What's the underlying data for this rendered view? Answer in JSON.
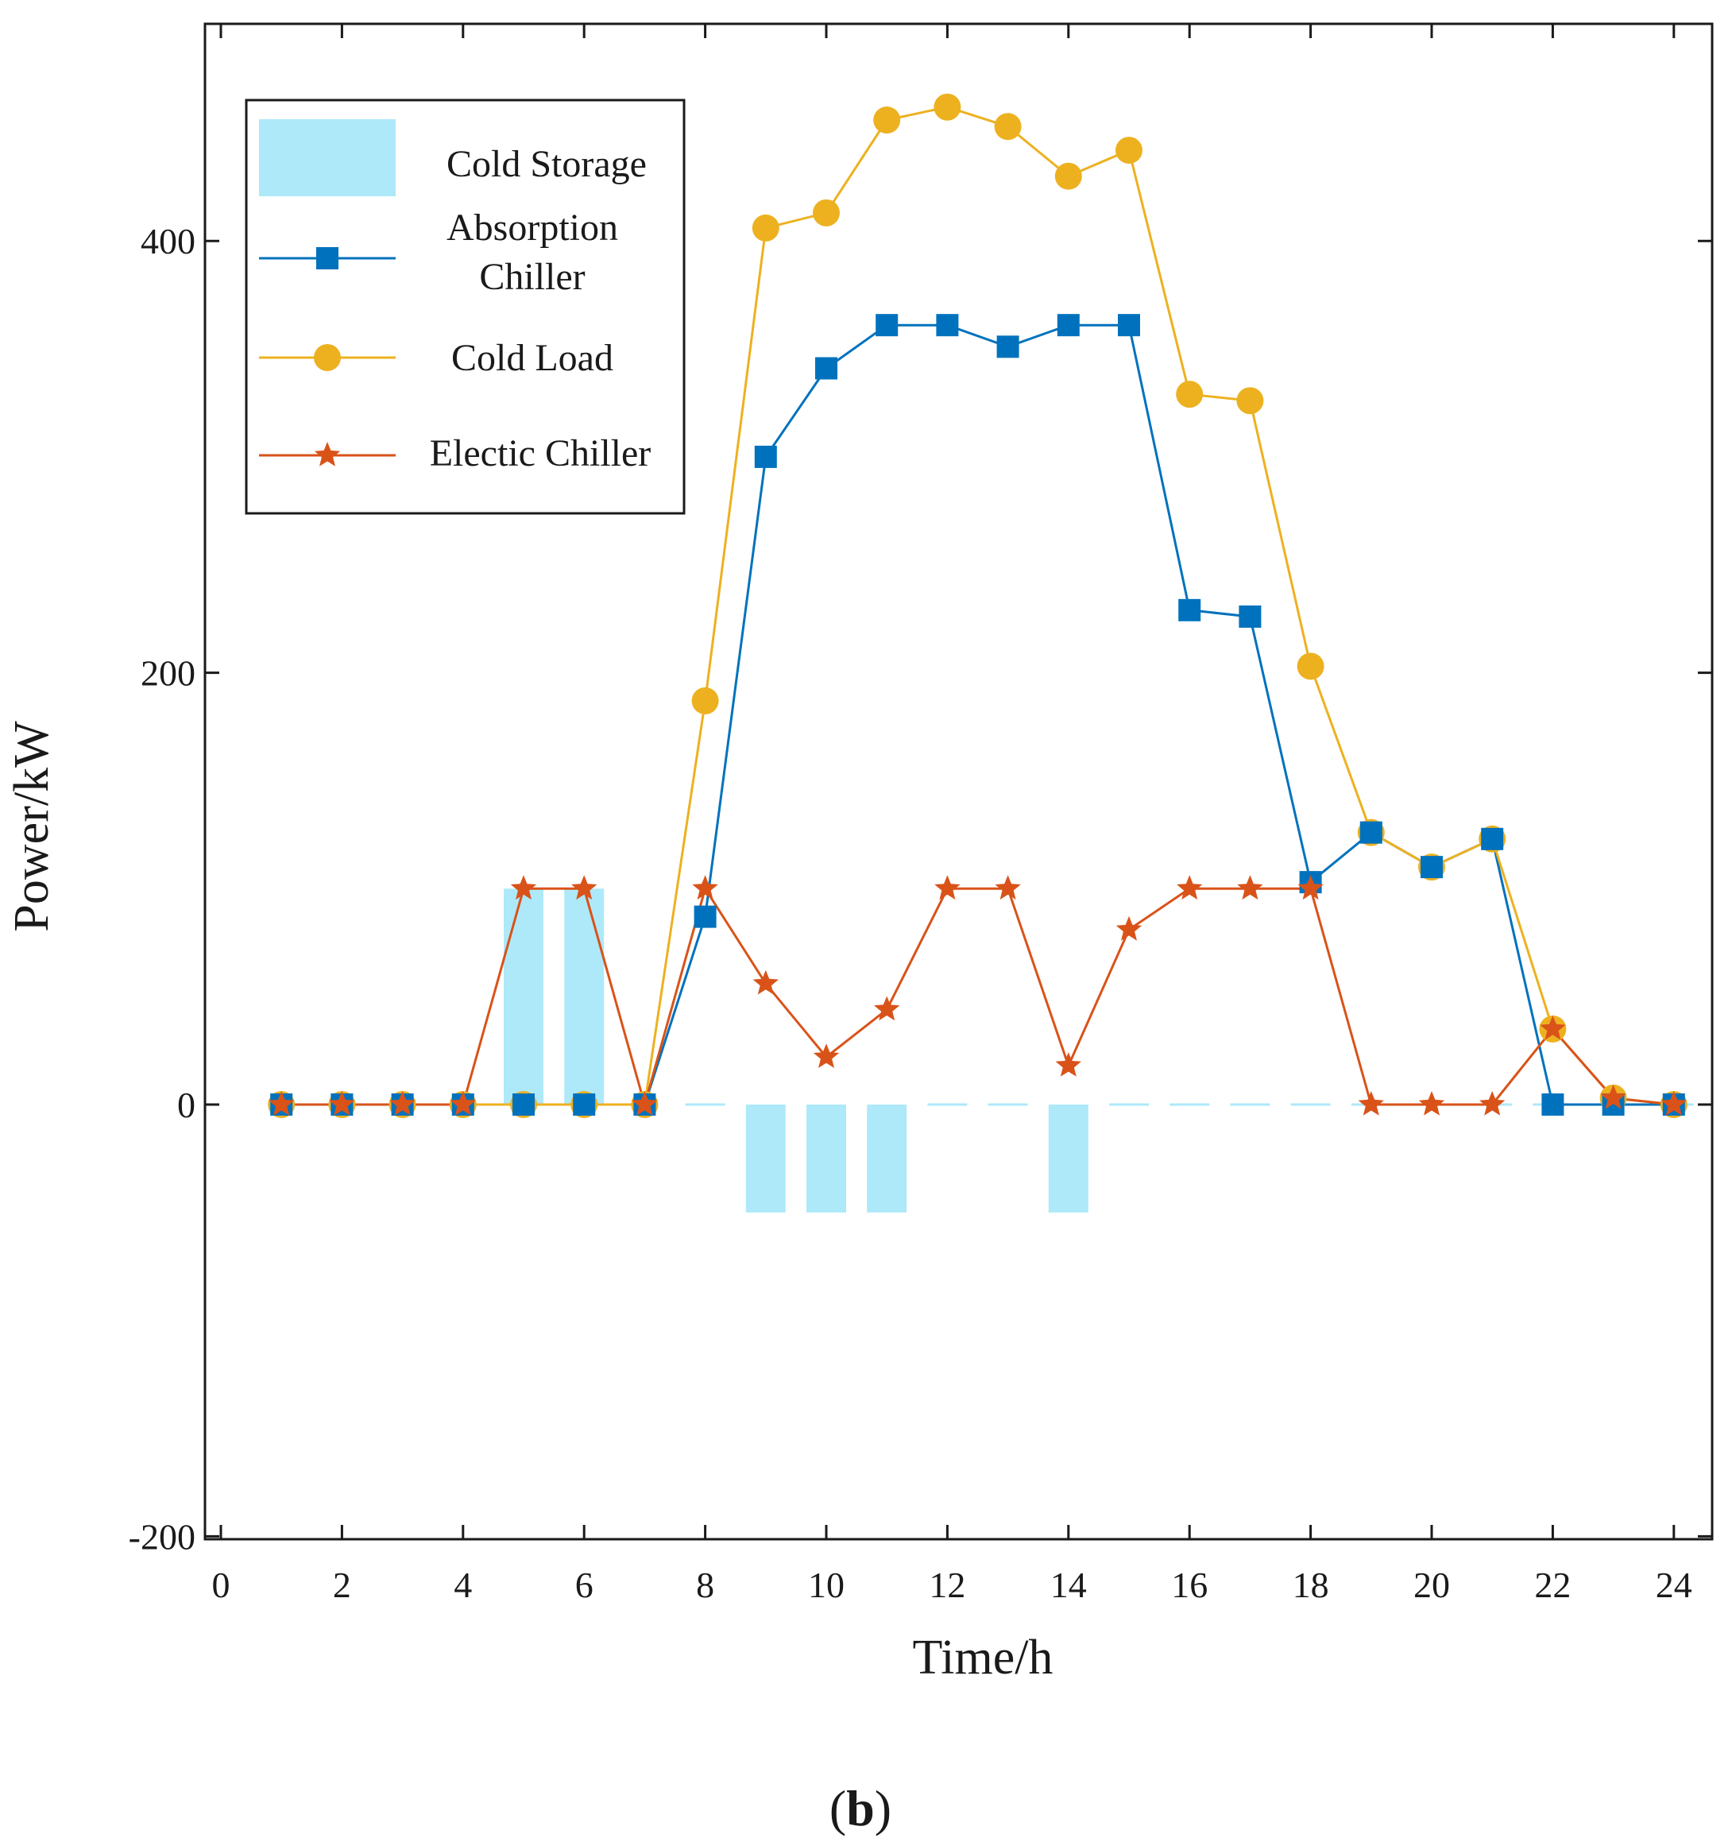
{
  "chart_data": {
    "type": "line",
    "xlabel": "Time/h",
    "ylabel": "Power/kW",
    "xlim": [
      0,
      24
    ],
    "ylim": [
      -200,
      500
    ],
    "xticks": [
      0,
      2,
      4,
      6,
      8,
      10,
      12,
      14,
      16,
      18,
      20,
      22,
      24
    ],
    "yticks": [
      -200,
      0,
      200,
      400
    ],
    "x": [
      1,
      2,
      3,
      4,
      5,
      6,
      7,
      8,
      9,
      10,
      11,
      12,
      13,
      14,
      15,
      16,
      17,
      18,
      19,
      20,
      21,
      22,
      23,
      24
    ],
    "series": [
      {
        "name": "Cold Storage",
        "kind": "bar",
        "color": "#aee9f9",
        "values": [
          0,
          0,
          0,
          0,
          100,
          100,
          0,
          0,
          -50,
          -50,
          -50,
          0,
          0,
          -50,
          0,
          0,
          0,
          0,
          0,
          0,
          0,
          0,
          0,
          0
        ]
      },
      {
        "name": "Absorption Chiller",
        "kind": "line",
        "marker": "square",
        "color": "#0072bd",
        "values": [
          0,
          0,
          0,
          0,
          0,
          0,
          0,
          87,
          300,
          341,
          361,
          361,
          351,
          361,
          361,
          229,
          226,
          103,
          126,
          110,
          123,
          0,
          0,
          0
        ]
      },
      {
        "name": "Cold Load",
        "kind": "line",
        "marker": "circle",
        "color": "#edb120",
        "values": [
          0,
          0,
          0,
          0,
          0,
          0,
          0,
          187,
          406,
          413,
          456,
          462,
          453,
          430,
          442,
          329,
          326,
          203,
          126,
          110,
          123,
          35,
          3,
          0
        ]
      },
      {
        "name": "Electic Chiller",
        "kind": "line",
        "marker": "star",
        "color": "#d95319",
        "values": [
          0,
          0,
          0,
          0,
          100,
          100,
          0,
          100,
          56,
          22,
          44,
          100,
          100,
          18,
          81,
          100,
          100,
          100,
          0,
          0,
          0,
          35,
          3,
          0
        ]
      }
    ],
    "legend_position": "top-left",
    "caption_open": "(",
    "caption_letter": "b",
    "caption_close": ")"
  }
}
